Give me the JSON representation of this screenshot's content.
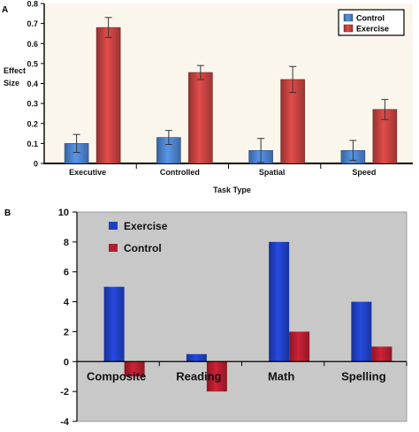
{
  "chart_data": [
    {
      "panel": "A",
      "type": "bar",
      "xlabel": "Task Type",
      "ylabel": "Effect Size",
      "ylabel_lines": [
        "Effect",
        "Size"
      ],
      "ylim": [
        0,
        0.8
      ],
      "yticks": [
        0,
        0.1,
        0.2,
        0.3,
        0.4,
        0.5,
        0.6,
        0.7,
        0.8
      ],
      "ytick_labels": [
        "0",
        "0.1",
        "0.2",
        "0.3",
        "0.4",
        "0.5",
        "0.6",
        "0.7",
        "0.8"
      ],
      "categories": [
        "Executive",
        "Controlled",
        "Spatial",
        "Speed"
      ],
      "series": [
        {
          "name": "Control",
          "color": "#4a7fc9",
          "values": [
            0.1,
            0.13,
            0.065,
            0.065
          ],
          "errors": [
            0.045,
            0.035,
            0.06,
            0.05
          ]
        },
        {
          "name": "Exercise",
          "color": "#c0403f",
          "values": [
            0.68,
            0.455,
            0.42,
            0.27
          ],
          "errors": [
            0.05,
            0.035,
            0.065,
            0.05
          ]
        }
      ],
      "legend_position": "top-right",
      "error_bars": true,
      "grid": false,
      "plot_background": "#fbf6ec"
    },
    {
      "panel": "B",
      "type": "bar",
      "xlabel": "",
      "ylabel": "",
      "ylim": [
        -4,
        10
      ],
      "yticks": [
        -4,
        -2,
        0,
        2,
        4,
        6,
        8,
        10
      ],
      "ytick_labels": [
        "-4",
        "-2",
        "0",
        "2",
        "4",
        "6",
        "8",
        "10"
      ],
      "categories": [
        "Composite",
        "Reading",
        "Math",
        "Spelling"
      ],
      "series": [
        {
          "name": "Exercise",
          "color": "#1f3fbf",
          "values": [
            5,
            0.5,
            8,
            4
          ]
        },
        {
          "name": "Control",
          "color": "#b01c2e",
          "values": [
            -1,
            -2,
            2,
            1
          ]
        }
      ],
      "legend_position": "top-left",
      "grid": false,
      "plot_background": "#c8c8c8"
    }
  ]
}
